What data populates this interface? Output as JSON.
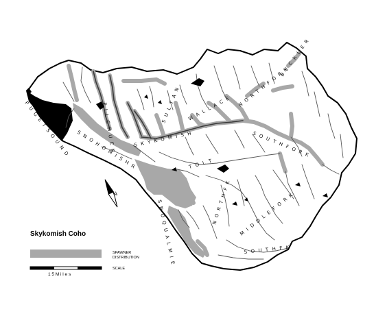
{
  "map": {
    "title": "Skykomish Coho",
    "legend": {
      "distribution_label_line1": "SPAWNER",
      "distribution_label_line2": "DISTRIBUTION",
      "scale_label": "SCALE",
      "scale_text": "1 5   M i l e s",
      "distribution_fill": "#a8a8a8"
    },
    "labels": {
      "puget_sound": "P U G E T   S O U N D",
      "snohomish": "S N O H O M I S H   R",
      "pilchuck": "P I L C H U C K",
      "skykomish": "S K Y K O M I S H",
      "snoqualmie": "S N O Q U A L M I E",
      "tolt": "T O L T",
      "north_fk": "N O R T H   F K",
      "south_fk": "S O U T H   F K",
      "middle_fork": "M I D D L E   F O R K",
      "sultan": "S U L T A N",
      "wallace": "W A L L A C E",
      "north_fork": "N O R T H   F O R K",
      "south_fork": "S O U T H   F O R K",
      "beckler": "B E C K L E R"
    },
    "colors": {
      "land": "#ffffff",
      "water": "#000000",
      "distribution": "#a8a8a8",
      "boundary": "#000000",
      "stream": "#555555"
    }
  }
}
